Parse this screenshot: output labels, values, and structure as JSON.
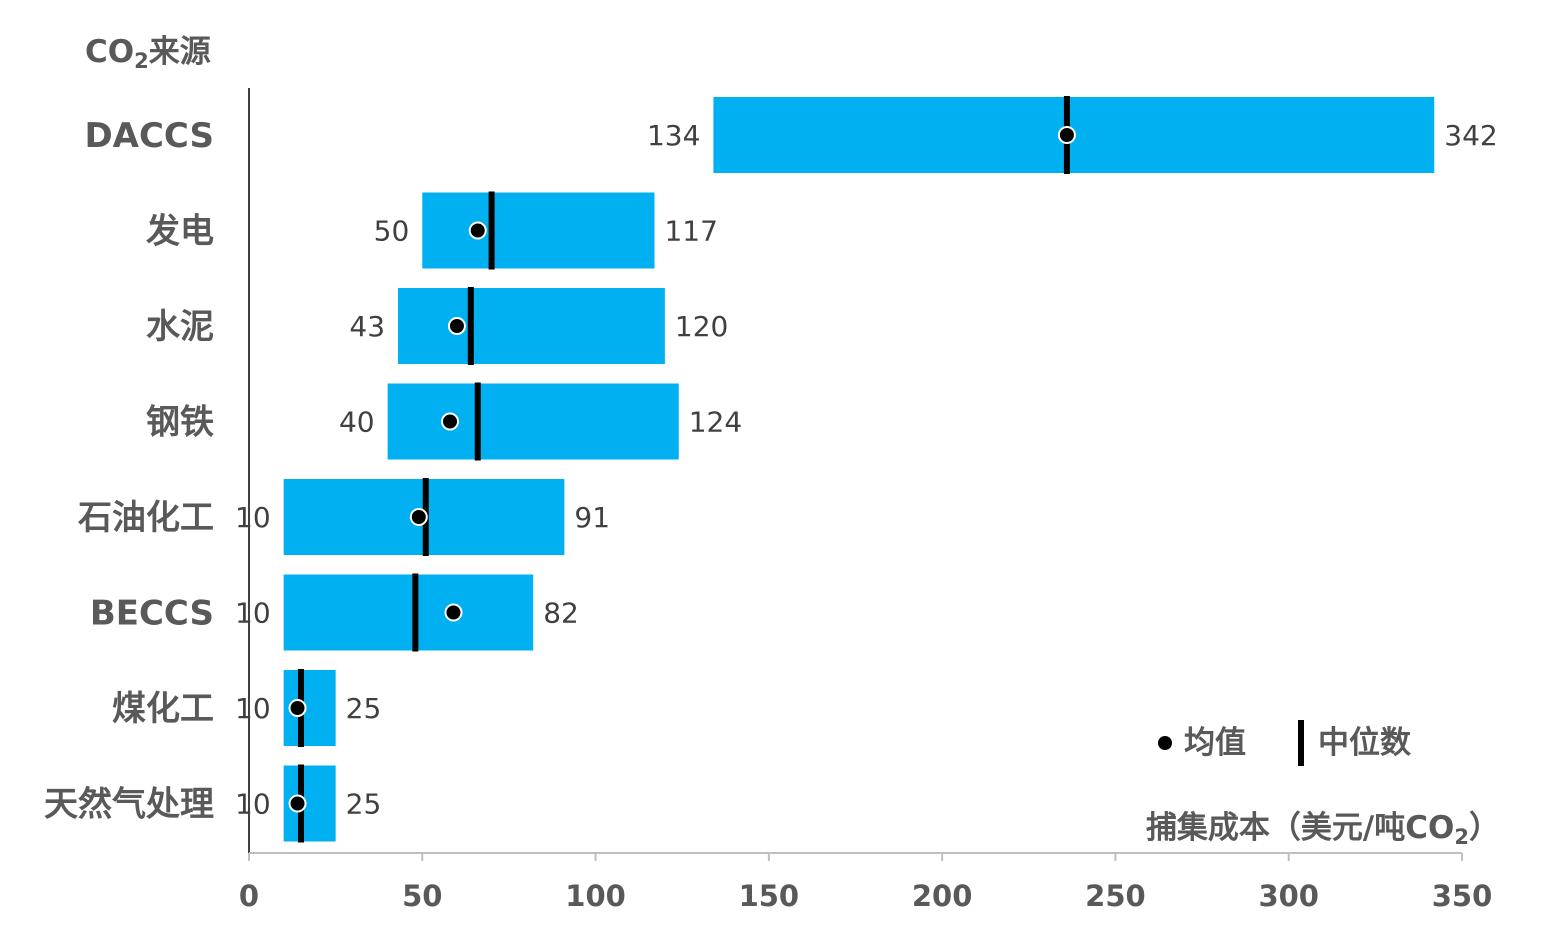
{
  "chart_data": {
    "type": "bar",
    "subtype": "floating-range",
    "orientation": "horizontal",
    "ylabel": "CO₂来源",
    "xlabel": "捕集成本（美元/吨CO₂）",
    "categories": [
      "DACCS",
      "发电",
      "水泥",
      "钢铁",
      "石油化工",
      "BECCS",
      "煤化工",
      "天然气处理"
    ],
    "min": [
      134,
      50,
      43,
      40,
      10,
      10,
      10,
      10
    ],
    "max": [
      342,
      117,
      120,
      124,
      91,
      82,
      25,
      25
    ],
    "mean": [
      236,
      66,
      60,
      58,
      49,
      59,
      14,
      14
    ],
    "median": [
      236,
      70,
      64,
      66,
      51,
      48,
      15,
      15
    ],
    "xlim": [
      0,
      350
    ],
    "xticks": [
      0,
      50,
      100,
      150,
      200,
      250,
      300,
      350
    ],
    "bar_color": "#00B0F0",
    "marker_color": "#000000",
    "legend": {
      "mean_label": "均值",
      "median_label": "中位数",
      "position": "bottom-right"
    },
    "grid": false
  }
}
